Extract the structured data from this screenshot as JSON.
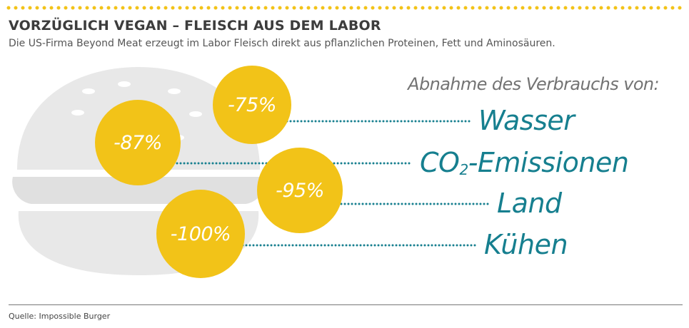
{
  "title": "VORZÜGLICH VEGAN – FLEISCH AUS DEM LABOR",
  "subtitle": "Die US-Firma Beyond Meat erzeugt im Labor Fleisch direkt aus pflanzlichen Proteinen, Fett und Aminosäuren.",
  "heading": "Abnahme des Verbrauchs von:",
  "items": [
    {
      "value": "-75%",
      "label_main": "Wasser",
      "label_sub": "",
      "label_rest": ""
    },
    {
      "value": "-87%",
      "label_main": "CO",
      "label_sub": "2",
      "label_rest": "-Emissionen"
    },
    {
      "value": "-95%",
      "label_main": "Land",
      "label_sub": "",
      "label_rest": ""
    },
    {
      "value": "-100%",
      "label_main": "Kühen",
      "label_sub": "",
      "label_rest": ""
    }
  ],
  "source": "Quelle: Impossible Burger",
  "colors": {
    "circle": "#f2c318",
    "label": "#167f8f",
    "burger": "#e8e8e8",
    "dots": "#f2c318"
  },
  "icons": {
    "background": "burger-icon"
  }
}
